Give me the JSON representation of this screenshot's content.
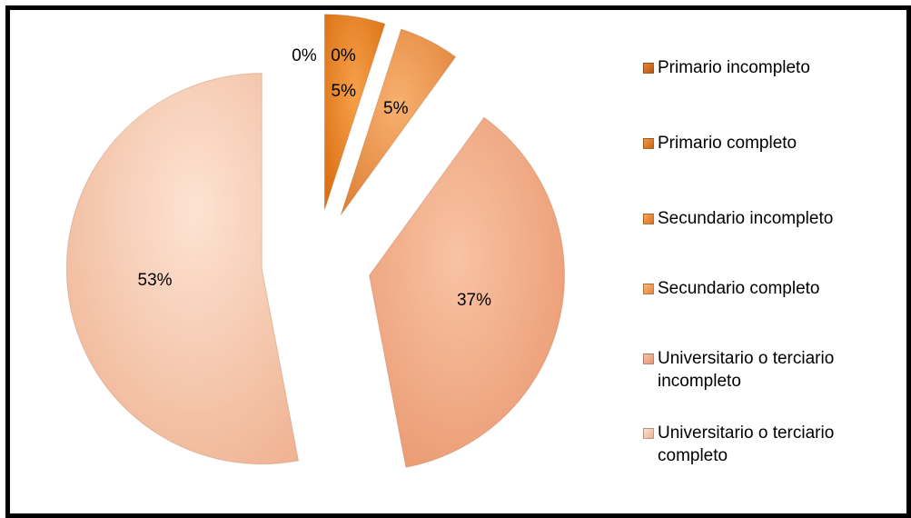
{
  "chart_data": {
    "type": "pie",
    "legend_position": "right",
    "slices": [
      {
        "label": "Primario incompleto",
        "value": 0,
        "data_label": "0%",
        "color": "#c8631a"
      },
      {
        "label": "Primario  completo",
        "value": 0,
        "data_label": "0%",
        "color": "#e07a22"
      },
      {
        "label": "Secundario incompleto",
        "value": 5,
        "data_label": "5%",
        "color": "#ee8a2c"
      },
      {
        "label": "Secundario completo",
        "value": 5,
        "data_label": "5%",
        "color": "#f29a52"
      },
      {
        "label": "Universitario o terciario incompleto",
        "value": 37,
        "data_label": "37%",
        "color": "#f2ab88"
      },
      {
        "label": "Universitario o terciario completo",
        "value": 53,
        "data_label": "53%",
        "color": "#f7cdb6"
      }
    ]
  }
}
